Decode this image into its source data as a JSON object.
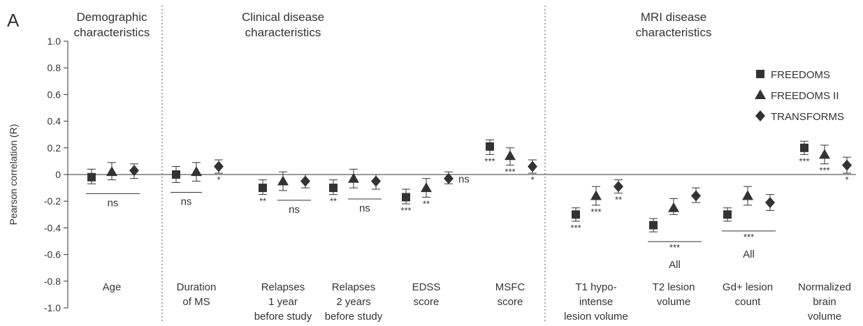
{
  "panel_label": "A",
  "chart_data": {
    "type": "scatter",
    "ylabel": "Pearson correlation (R)",
    "ylim": [
      -1.0,
      1.0
    ],
    "yticks": [
      "1.0",
      "0.8",
      "0.6",
      "0.4",
      "0.2",
      "0",
      "-0.2",
      "-0.4",
      "-0.6",
      "-0.8",
      "-1.0"
    ],
    "zero_line": true,
    "grid": false,
    "legend_position": "top-right",
    "sections": [
      {
        "title": [
          "Demographic",
          "characteristics"
        ]
      },
      {
        "title": [
          "Clinical disease",
          "characteristics"
        ]
      },
      {
        "title": [
          "MRI disease",
          "characteristics"
        ]
      }
    ],
    "series": [
      {
        "name": "FREEDOMS",
        "marker": "square"
      },
      {
        "name": "FREEDOMS II",
        "marker": "triangle"
      },
      {
        "name": "TRANSFORMS",
        "marker": "diamond"
      }
    ],
    "categories": [
      {
        "label": [
          "Age"
        ],
        "points": [
          {
            "y": -0.02,
            "lo": -0.07,
            "hi": 0.04,
            "sig": ""
          },
          {
            "y": 0.02,
            "lo": -0.04,
            "hi": 0.09,
            "sig": ""
          },
          {
            "y": 0.03,
            "lo": -0.03,
            "hi": 0.08,
            "sig": ""
          }
        ],
        "group_sig": {
          "text": "ns",
          "from": 0,
          "to": 2
        }
      },
      {
        "label": [
          "Duration",
          "of MS"
        ],
        "points": [
          {
            "y": 0.0,
            "lo": -0.06,
            "hi": 0.06,
            "sig": ""
          },
          {
            "y": 0.02,
            "lo": -0.05,
            "hi": 0.09,
            "sig": ""
          },
          {
            "y": 0.06,
            "lo": 0.01,
            "hi": 0.11,
            "sig": "*"
          }
        ],
        "group_sig": {
          "text": "ns",
          "from": 0,
          "to": 1
        }
      },
      {
        "label": [
          "Relapses",
          "1 year",
          "before study"
        ],
        "points": [
          {
            "y": -0.1,
            "lo": -0.15,
            "hi": -0.04,
            "sig": "**"
          },
          {
            "y": -0.05,
            "lo": -0.12,
            "hi": 0.02,
            "sig": ""
          },
          {
            "y": -0.05,
            "lo": -0.1,
            "hi": 0.0,
            "sig": ""
          }
        ],
        "group_sig": {
          "text": "ns",
          "from": 1,
          "to": 2
        }
      },
      {
        "label": [
          "Relapses",
          "2 years",
          "before study"
        ],
        "points": [
          {
            "y": -0.1,
            "lo": -0.15,
            "hi": -0.04,
            "sig": "**"
          },
          {
            "y": -0.03,
            "lo": -0.1,
            "hi": 0.04,
            "sig": ""
          },
          {
            "y": -0.05,
            "lo": -0.11,
            "hi": 0.0,
            "sig": ""
          }
        ],
        "group_sig": {
          "text": "ns",
          "from": 1,
          "to": 2
        }
      },
      {
        "label": [
          "EDSS",
          "score"
        ],
        "points": [
          {
            "y": -0.17,
            "lo": -0.22,
            "hi": -0.11,
            "sig": "***"
          },
          {
            "y": -0.1,
            "lo": -0.17,
            "hi": -0.03,
            "sig": "**"
          },
          {
            "y": -0.03,
            "lo": -0.07,
            "hi": 0.02,
            "sig": "ns"
          }
        ],
        "group_sig": null
      },
      {
        "label": [
          "MSFC",
          "score"
        ],
        "points": [
          {
            "y": 0.21,
            "lo": 0.15,
            "hi": 0.26,
            "sig": "***"
          },
          {
            "y": 0.14,
            "lo": 0.07,
            "hi": 0.2,
            "sig": "***"
          },
          {
            "y": 0.06,
            "lo": 0.01,
            "hi": 0.11,
            "sig": "*"
          }
        ],
        "group_sig": null
      },
      {
        "label": [
          "T1 hypo-",
          "intense",
          "lesion volume"
        ],
        "points": [
          {
            "y": -0.3,
            "lo": -0.35,
            "hi": -0.25,
            "sig": "***"
          },
          {
            "y": -0.16,
            "lo": -0.23,
            "hi": -0.09,
            "sig": "***"
          },
          {
            "y": -0.09,
            "lo": -0.14,
            "hi": -0.04,
            "sig": "**"
          }
        ],
        "group_sig": null
      },
      {
        "label": [
          "T2 lesion",
          "volume"
        ],
        "points": [
          {
            "y": -0.38,
            "lo": -0.43,
            "hi": -0.33,
            "sig": ""
          },
          {
            "y": -0.25,
            "lo": -0.3,
            "hi": -0.18,
            "sig": ""
          },
          {
            "y": -0.16,
            "lo": -0.21,
            "hi": -0.1,
            "sig": ""
          }
        ],
        "group_sig": {
          "text": "***",
          "from": 0,
          "to": 2,
          "caption": "All"
        }
      },
      {
        "label": [
          "Gd+ lesion",
          "count"
        ],
        "points": [
          {
            "y": -0.3,
            "lo": -0.35,
            "hi": -0.25,
            "sig": ""
          },
          {
            "y": -0.16,
            "lo": -0.23,
            "hi": -0.09,
            "sig": ""
          },
          {
            "y": -0.21,
            "lo": -0.27,
            "hi": -0.15,
            "sig": ""
          }
        ],
        "group_sig": {
          "text": "***",
          "from": 0,
          "to": 2,
          "caption": "All"
        }
      },
      {
        "label": [
          "Normalized",
          "brain",
          "volume"
        ],
        "points": [
          {
            "y": 0.2,
            "lo": 0.15,
            "hi": 0.25,
            "sig": "***"
          },
          {
            "y": 0.15,
            "lo": 0.08,
            "hi": 0.22,
            "sig": "***"
          },
          {
            "y": 0.07,
            "lo": 0.01,
            "hi": 0.13,
            "sig": "*"
          }
        ],
        "group_sig": null
      }
    ]
  }
}
